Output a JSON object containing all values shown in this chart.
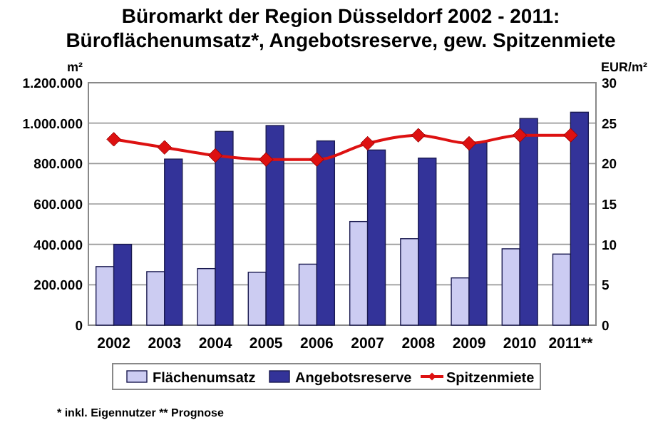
{
  "chart_data": {
    "type": "bar",
    "title": "Büromarkt der Region Düsseldorf 2002 - 2011:\nBüroflächenumsatz*, Angebotsreserve, gew. Spitzenmiete",
    "categories": [
      "2002",
      "2003",
      "2004",
      "2005",
      "2006",
      "2007",
      "2008",
      "2009",
      "2010",
      "2011**"
    ],
    "series": [
      {
        "name": "Flächenumsatz",
        "color": "#ccccf2",
        "values": [
          290000,
          265000,
          280000,
          262000,
          302000,
          513000,
          428000,
          234000,
          378000,
          352000
        ]
      },
      {
        "name": "Angebotsreserve",
        "color": "#333399",
        "values": [
          400000,
          822000,
          959000,
          988000,
          912000,
          867000,
          827000,
          905000,
          1023000,
          1054000
        ]
      },
      {
        "name": "Spitzenmiete",
        "type": "line",
        "axis": "y2",
        "color": "#dd1111",
        "marker": "diamond",
        "values": [
          23,
          22,
          21,
          20.5,
          20.5,
          22.5,
          23.5,
          22.5,
          23.5,
          23.5
        ]
      }
    ],
    "ylabel": "m²",
    "y2label": "EUR/m²",
    "ylim": [
      0,
      1200000
    ],
    "yticks": [
      {
        "value": 0,
        "label": "0"
      },
      {
        "value": 200000,
        "label": "200.000"
      },
      {
        "value": 400000,
        "label": "400.000"
      },
      {
        "value": 600000,
        "label": "600.000"
      },
      {
        "value": 800000,
        "label": "800.000"
      },
      {
        "value": 1000000,
        "label": "1.000.000"
      },
      {
        "value": 1200000,
        "label": "1.200.000"
      }
    ],
    "y2lim": [
      0,
      30
    ],
    "y2ticks": [
      0,
      5,
      10,
      15,
      20,
      25,
      30
    ],
    "grid": "y",
    "legend": "bottom",
    "annotations": [
      "* inkl. Eigennutzer  ** Prognose"
    ]
  }
}
